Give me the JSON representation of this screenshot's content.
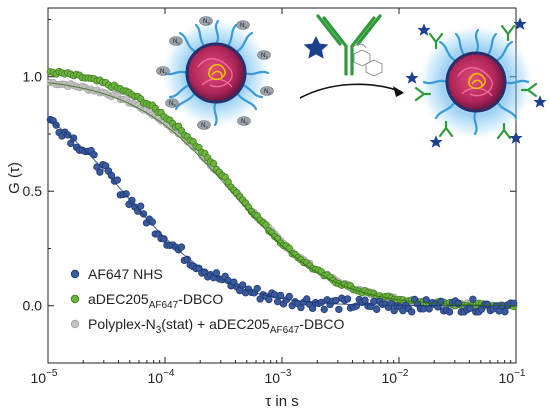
{
  "chart_data": {
    "type": "scatter",
    "title": "",
    "xlabel": "τ in s",
    "ylabel": "G (τ)",
    "x_scale": "log",
    "xlim": [
      1e-05,
      0.1
    ],
    "ylim": [
      -0.25,
      1.3
    ],
    "x_ticks": [
      {
        "value": 1e-05,
        "base": "10",
        "exp": "−5"
      },
      {
        "value": 0.0001,
        "base": "10",
        "exp": "−4"
      },
      {
        "value": 0.001,
        "base": "10",
        "exp": "−3"
      },
      {
        "value": 0.01,
        "base": "10",
        "exp": "−2"
      },
      {
        "value": 0.1,
        "base": "10",
        "exp": "−1"
      }
    ],
    "y_ticks": [
      {
        "value": 0,
        "label": "0.0"
      },
      {
        "value": 0.5,
        "label": "0.5"
      },
      {
        "value": 1,
        "label": "1.0"
      }
    ],
    "grid": false,
    "legend_position": "bottom-left",
    "series": [
      {
        "name": "Polyplex-N3(stat) + aDEC205AF647-DBCO",
        "legend_parts": [
          {
            "text": "Polyplex-N",
            "style": "normal"
          },
          {
            "text": "3",
            "style": "sub"
          },
          {
            "text": "(stat) + aDEC205",
            "style": "normal"
          },
          {
            "text": "AF647",
            "style": "sub"
          },
          {
            "text": "-DBCO",
            "style": "normal"
          }
        ],
        "color": "#c2c2c2",
        "marker_edge": "#a0a0a0",
        "model": {
          "tau_d": 0.00041,
          "gap": 1.0,
          "points": 160
        }
      },
      {
        "name": "aDEC205AF647-DBCO",
        "legend_parts": [
          {
            "text": "aDEC205",
            "style": "normal"
          },
          {
            "text": "AF647",
            "style": "sub"
          },
          {
            "text": "-DBCO",
            "style": "normal"
          }
        ],
        "color": "#6cb33f",
        "marker_edge": "#3f7a1f",
        "model": {
          "tau_d": 0.00038,
          "gap": 1.05,
          "points": 160
        }
      },
      {
        "name": "AF647 NHS",
        "legend_parts": [
          {
            "text": "AF647 NHS",
            "style": "normal"
          }
        ],
        "color": "#3a5a9c",
        "marker_edge": "#1c3470",
        "model": {
          "tau_d": 4.5e-05,
          "gap": 1.0,
          "points": 160
        }
      }
    ],
    "fit_lines": [
      {
        "of_series": "AF647 NHS",
        "color": "#1c3a7a",
        "tau_d": 4.5e-05
      },
      {
        "of_series": "aDEC205AF647-DBCO",
        "color": "#2f6a12",
        "tau_d": 0.00038
      }
    ]
  },
  "schematic": {
    "core_label_molecule": "N3",
    "core_label_sub": "3",
    "arrow_color": "#111111",
    "antibody_color": "#2f9a3a",
    "star_color": "#1d3f8f",
    "glow_color": "#4aa8e8",
    "core_color": "#c8386a",
    "shell_color": "#2a2f6b"
  }
}
